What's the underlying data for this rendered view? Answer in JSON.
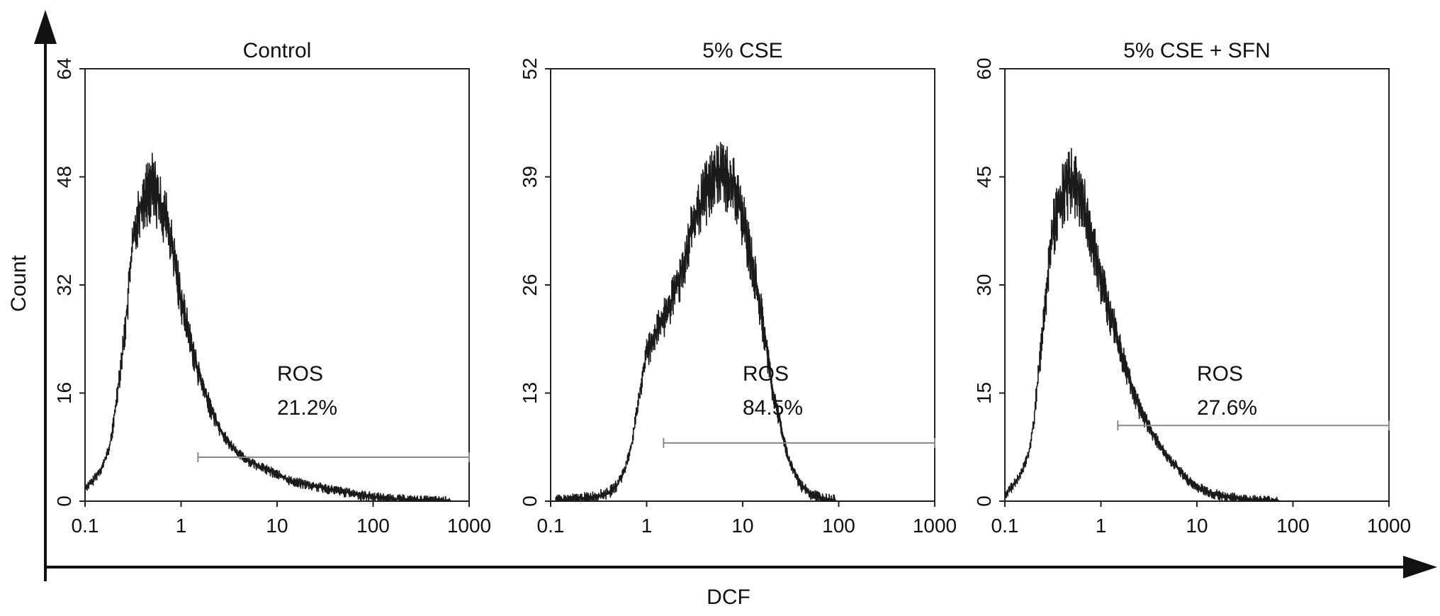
{
  "figure": {
    "y_axis_label": "Count",
    "x_axis_label": "DCF"
  },
  "chart_data": [
    {
      "type": "area",
      "title": "Control",
      "xscale": "log",
      "xlim": [
        0.1,
        1000
      ],
      "ylim": [
        0,
        64
      ],
      "xticks": [
        "0.1",
        "1",
        "10",
        "100",
        "1000"
      ],
      "yticks": [
        "0",
        "16",
        "32",
        "48",
        "64"
      ],
      "annotation": {
        "label": "ROS",
        "value": "21.2%"
      },
      "gate": {
        "x_start": 1.5,
        "x_end": 1000,
        "y": 6.5
      },
      "x": [
        0.1,
        0.12,
        0.15,
        0.18,
        0.2,
        0.22,
        0.25,
        0.28,
        0.3,
        0.33,
        0.36,
        0.4,
        0.45,
        0.5,
        0.55,
        0.6,
        0.7,
        0.8,
        0.9,
        1.0,
        1.2,
        1.4,
        1.6,
        2.0,
        2.5,
        3.0,
        4.0,
        5.0,
        7.0,
        10,
        14,
        20,
        30,
        45,
        70,
        100,
        150,
        250,
        400,
        1000
      ],
      "y": [
        2,
        3,
        5,
        8,
        12,
        17,
        23,
        30,
        36,
        40,
        43,
        45,
        46,
        47,
        46,
        44,
        42,
        38,
        34,
        30,
        25,
        21,
        18,
        14,
        11,
        9,
        7,
        6,
        5,
        4,
        3,
        2.5,
        2,
        1.5,
        1,
        0.7,
        0.4,
        0.2,
        0.1,
        0
      ]
    },
    {
      "type": "area",
      "title": "5% CSE",
      "xscale": "log",
      "xlim": [
        0.1,
        1000
      ],
      "ylim": [
        0,
        52
      ],
      "xticks": [
        "0.1",
        "1",
        "10",
        "100",
        "1000"
      ],
      "yticks": [
        "0",
        "13",
        "26",
        "39",
        "52"
      ],
      "annotation": {
        "label": "ROS",
        "value": "84.5%"
      },
      "gate": {
        "x_start": 1.5,
        "x_end": 1000,
        "y": 7
      },
      "x": [
        0.1,
        0.2,
        0.3,
        0.4,
        0.5,
        0.6,
        0.7,
        0.8,
        0.9,
        1.0,
        1.2,
        1.5,
        1.8,
        2.2,
        2.6,
        3.0,
        3.5,
        4.0,
        5.0,
        6.0,
        7.0,
        8.0,
        9.0,
        10,
        12,
        14,
        16,
        18,
        20,
        25,
        30,
        40,
        50,
        70,
        100,
        1000
      ],
      "y": [
        0,
        0.3,
        0.6,
        1,
        2,
        4,
        7,
        11,
        15,
        18,
        20,
        22,
        24,
        27,
        30,
        33,
        35,
        37,
        39,
        40,
        39,
        38,
        36,
        34,
        30,
        26,
        22,
        18,
        14,
        9,
        5,
        2,
        1,
        0.3,
        0,
        0
      ]
    },
    {
      "type": "area",
      "title": "5% CSE + SFN",
      "xscale": "log",
      "xlim": [
        0.1,
        1000
      ],
      "ylim": [
        0,
        60
      ],
      "xticks": [
        "0.1",
        "1",
        "10",
        "100",
        "1000"
      ],
      "yticks": [
        "0",
        "15",
        "30",
        "45",
        "60"
      ],
      "annotation": {
        "label": "ROS",
        "value": "27.6%"
      },
      "gate": {
        "x_start": 1.5,
        "x_end": 1000,
        "y": 10.5
      },
      "x": [
        0.1,
        0.12,
        0.15,
        0.18,
        0.2,
        0.22,
        0.25,
        0.28,
        0.3,
        0.33,
        0.36,
        0.4,
        0.45,
        0.5,
        0.55,
        0.6,
        0.7,
        0.8,
        0.9,
        1.0,
        1.2,
        1.4,
        1.6,
        2.0,
        2.5,
        3.0,
        4.0,
        5.0,
        6.0,
        8.0,
        10,
        14,
        20,
        30,
        50,
        100,
        1000
      ],
      "y": [
        1,
        2,
        4,
        7,
        11,
        17,
        24,
        31,
        36,
        39,
        41,
        43,
        44,
        45,
        44,
        43,
        40,
        37,
        34,
        31,
        27,
        24,
        21,
        17,
        13,
        11,
        8,
        6,
        5,
        3,
        2,
        1.2,
        0.6,
        0.3,
        0.1,
        0,
        0
      ]
    }
  ]
}
